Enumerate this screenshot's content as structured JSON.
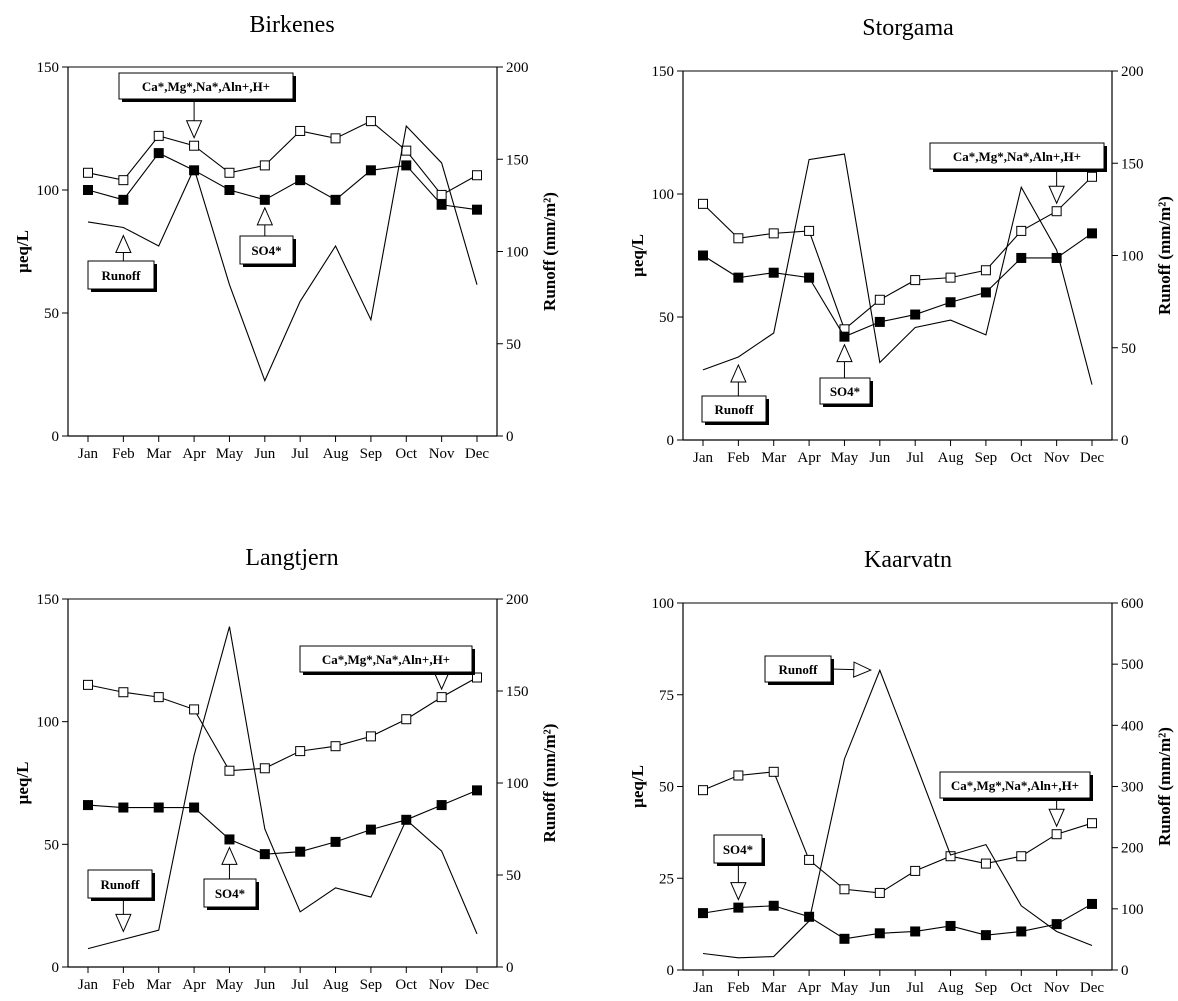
{
  "chart_data": [
    {
      "type": "line",
      "title": "Birkenes",
      "categories": [
        "Jan",
        "Feb",
        "Mar",
        "Apr",
        "May",
        "Jun",
        "Jul",
        "Aug",
        "Sep",
        "Oct",
        "Nov",
        "Dec"
      ],
      "ylabel": "µeq/L",
      "y2label": "Runoff (mm/m²)",
      "ylim": [
        0,
        150
      ],
      "yticks": [
        0,
        50,
        100,
        150
      ],
      "y2lim": [
        0,
        200
      ],
      "y2ticks": [
        0,
        50,
        100,
        150,
        200
      ],
      "grid": false,
      "series": [
        {
          "name": "Ca*,Mg*,Na*,Aln+,H+",
          "axis": "left",
          "marker": "open-square",
          "values": [
            107,
            104,
            122,
            118,
            107,
            110,
            124,
            121,
            128,
            116,
            98,
            106
          ]
        },
        {
          "name": "SO4*",
          "axis": "left",
          "marker": "filled-square",
          "values": [
            100,
            96,
            115,
            108,
            100,
            96,
            104,
            96,
            108,
            110,
            94,
            92
          ]
        },
        {
          "name": "Runoff",
          "axis": "right",
          "marker": "none",
          "values": [
            116,
            113,
            103,
            145,
            82,
            30,
            73,
            103,
            63,
            168,
            148,
            82
          ]
        }
      ],
      "callouts": [
        {
          "text": "Ca*,Mg*,Na*,Aln+,H+",
          "series": 0,
          "month": 3
        },
        {
          "text": "SO4*",
          "series": 1,
          "month": 5
        },
        {
          "text": "Runoff",
          "series": 2,
          "month": 1
        }
      ]
    },
    {
      "type": "line",
      "title": "Storgama",
      "categories": [
        "Jan",
        "Feb",
        "Mar",
        "Apr",
        "May",
        "Jun",
        "Jul",
        "Aug",
        "Sep",
        "Oct",
        "Nov",
        "Dec"
      ],
      "ylabel": "µeq/L",
      "y2label": "Runoff (mm/m²)",
      "ylim": [
        0,
        150
      ],
      "yticks": [
        0,
        50,
        100,
        150
      ],
      "y2lim": [
        0,
        200
      ],
      "y2ticks": [
        0,
        50,
        100,
        150,
        200
      ],
      "grid": false,
      "series": [
        {
          "name": "Ca*,Mg*,Na*,Aln+,H+",
          "axis": "left",
          "marker": "open-square",
          "values": [
            96,
            82,
            84,
            85,
            45,
            57,
            65,
            66,
            69,
            85,
            93,
            107
          ]
        },
        {
          "name": "SO4*",
          "axis": "left",
          "marker": "filled-square",
          "values": [
            75,
            66,
            68,
            66,
            42,
            48,
            51,
            56,
            60,
            74,
            74,
            84
          ]
        },
        {
          "name": "Runoff",
          "axis": "right",
          "marker": "none",
          "values": [
            38,
            45,
            58,
            152,
            155,
            42,
            61,
            65,
            57,
            137,
            103,
            30
          ]
        }
      ],
      "callouts": [
        {
          "text": "Ca*,Mg*,Na*,Aln+,H+",
          "series": 0,
          "month": 10
        },
        {
          "text": "SO4*",
          "series": 1,
          "month": 4
        },
        {
          "text": "Runoff",
          "series": 2,
          "month": 1
        }
      ]
    },
    {
      "type": "line",
      "title": "Langtjern",
      "categories": [
        "Jan",
        "Feb",
        "Mar",
        "Apr",
        "May",
        "Jun",
        "Jul",
        "Aug",
        "Sep",
        "Oct",
        "Nov",
        "Dec"
      ],
      "ylabel": "µeq/L",
      "y2label": "Runoff (mm/m²)",
      "ylim": [
        0,
        150
      ],
      "yticks": [
        0,
        50,
        100,
        150
      ],
      "y2lim": [
        0,
        200
      ],
      "y2ticks": [
        0,
        50,
        100,
        150,
        200
      ],
      "grid": false,
      "series": [
        {
          "name": "Ca*,Mg*,Na*,Aln+,H+",
          "axis": "left",
          "marker": "open-square",
          "values": [
            115,
            112,
            110,
            105,
            80,
            81,
            88,
            90,
            94,
            101,
            110,
            118
          ]
        },
        {
          "name": "SO4*",
          "axis": "left",
          "marker": "filled-square",
          "values": [
            66,
            65,
            65,
            65,
            52,
            46,
            47,
            51,
            56,
            60,
            66,
            72
          ]
        },
        {
          "name": "Runoff",
          "axis": "right",
          "marker": "none",
          "values": [
            10,
            15,
            20,
            115,
            185,
            75,
            30,
            43,
            38,
            80,
            63,
            18
          ]
        }
      ],
      "callouts": [
        {
          "text": "Ca*,Mg*,Na*,Aln+,H+",
          "series": 0,
          "month": 10
        },
        {
          "text": "SO4*",
          "series": 1,
          "month": 4
        },
        {
          "text": "Runoff",
          "series": 2,
          "month": 1
        }
      ]
    },
    {
      "type": "line",
      "title": "Kaarvatn",
      "categories": [
        "Jan",
        "Feb",
        "Mar",
        "Apr",
        "May",
        "Jun",
        "Jul",
        "Aug",
        "Sep",
        "Oct",
        "Nov",
        "Dec"
      ],
      "ylabel": "µeq/L",
      "y2label": "Runoff (mm/m²)",
      "ylim": [
        0,
        100
      ],
      "yticks": [
        0,
        25,
        50,
        75,
        100
      ],
      "y2lim": [
        0,
        600
      ],
      "y2ticks": [
        0,
        100,
        200,
        300,
        400,
        500,
        600
      ],
      "grid": false,
      "series": [
        {
          "name": "Ca*,Mg*,Na*,Aln+,H+",
          "axis": "left",
          "marker": "open-square",
          "values": [
            49,
            53,
            54,
            30,
            22,
            21,
            27,
            31,
            29,
            31,
            37,
            40
          ]
        },
        {
          "name": "SO4*",
          "axis": "left",
          "marker": "filled-square",
          "values": [
            15.5,
            17,
            17.5,
            14.5,
            8.5,
            10,
            10.5,
            12,
            9.5,
            10.5,
            12.5,
            18
          ]
        },
        {
          "name": "Runoff",
          "axis": "right",
          "marker": "none",
          "values": [
            27,
            20,
            22,
            80,
            345,
            490,
            340,
            188,
            205,
            105,
            63,
            40
          ]
        }
      ],
      "callouts": [
        {
          "text": "Runoff",
          "series": 2,
          "month": 5
        },
        {
          "text": "Ca*,Mg*,Na*,Aln+,H+",
          "series": 0,
          "month": 10
        },
        {
          "text": "SO4*",
          "series": 1,
          "month": 1
        }
      ]
    }
  ]
}
